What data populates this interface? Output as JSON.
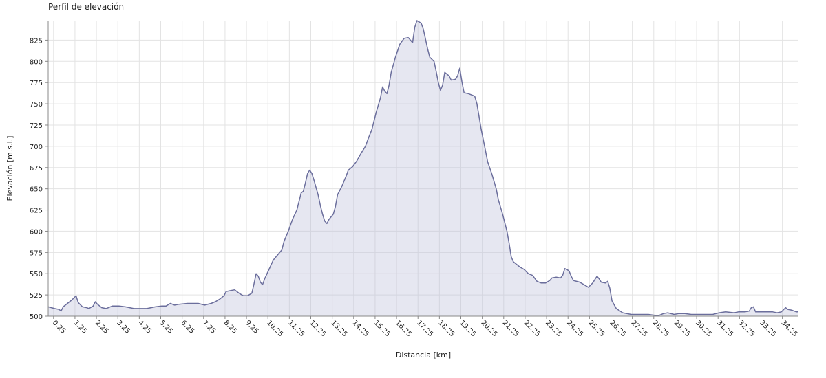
{
  "chart_data": {
    "type": "area",
    "title": "Perfil de elevación",
    "xlabel": "Distancia [km]",
    "ylabel": "Elevación [m.s.l.]",
    "xlim": [
      0,
      35
    ],
    "ylim": [
      500,
      848
    ],
    "x_tick_labels": [
      "0.25",
      "1.25",
      "2.25",
      "3.25",
      "4.25",
      "5.25",
      "6.25",
      "7.25",
      "8.25",
      "9.25",
      "10.25",
      "11.25",
      "12.25",
      "13.25",
      "14.25",
      "15.25",
      "16.25",
      "17.25",
      "18.25",
      "19.25",
      "20.25",
      "21.25",
      "22.25",
      "23.25",
      "24.25",
      "25.25",
      "26.25",
      "27.25",
      "28.25",
      "29.25",
      "30.25",
      "31.25",
      "32.25",
      "33.25",
      "34.25"
    ],
    "y_tick_labels": [
      "500",
      "525",
      "550",
      "575",
      "600",
      "625",
      "650",
      "675",
      "700",
      "725",
      "750",
      "775",
      "800",
      "825"
    ],
    "grid": true,
    "line_color": "#6b6e9c",
    "fill_color": "#b8bbd6",
    "grid_color": "#e3e3e3",
    "series": [
      {
        "points": [
          [
            0.0,
            511
          ],
          [
            0.3,
            509
          ],
          [
            0.5,
            508
          ],
          [
            0.6,
            506
          ],
          [
            0.7,
            511
          ],
          [
            0.9,
            515
          ],
          [
            1.1,
            519
          ],
          [
            1.3,
            524
          ],
          [
            1.4,
            516
          ],
          [
            1.6,
            511
          ],
          [
            1.8,
            510
          ],
          [
            1.9,
            509
          ],
          [
            2.1,
            512
          ],
          [
            2.2,
            517
          ],
          [
            2.3,
            514
          ],
          [
            2.5,
            510
          ],
          [
            2.7,
            509
          ],
          [
            3.0,
            512
          ],
          [
            3.3,
            512
          ],
          [
            3.6,
            511
          ],
          [
            4.0,
            509
          ],
          [
            4.3,
            509
          ],
          [
            4.6,
            509
          ],
          [
            5.0,
            511
          ],
          [
            5.3,
            512
          ],
          [
            5.5,
            512
          ],
          [
            5.7,
            515
          ],
          [
            5.9,
            513
          ],
          [
            6.1,
            514
          ],
          [
            6.5,
            515
          ],
          [
            6.8,
            515
          ],
          [
            7.0,
            515
          ],
          [
            7.3,
            513
          ],
          [
            7.6,
            515
          ],
          [
            7.8,
            517
          ],
          [
            8.0,
            520
          ],
          [
            8.2,
            524
          ],
          [
            8.3,
            529
          ],
          [
            8.5,
            530
          ],
          [
            8.7,
            531
          ],
          [
            8.9,
            527
          ],
          [
            9.1,
            524
          ],
          [
            9.3,
            524
          ],
          [
            9.5,
            527
          ],
          [
            9.6,
            538
          ],
          [
            9.7,
            550
          ],
          [
            9.8,
            547
          ],
          [
            9.9,
            540
          ],
          [
            10.0,
            537
          ],
          [
            10.1,
            544
          ],
          [
            10.3,
            555
          ],
          [
            10.5,
            566
          ],
          [
            10.7,
            572
          ],
          [
            10.9,
            578
          ],
          [
            11.0,
            588
          ],
          [
            11.2,
            600
          ],
          [
            11.4,
            614
          ],
          [
            11.6,
            625
          ],
          [
            11.8,
            645
          ],
          [
            11.9,
            647
          ],
          [
            12.0,
            657
          ],
          [
            12.1,
            668
          ],
          [
            12.2,
            672
          ],
          [
            12.3,
            668
          ],
          [
            12.4,
            660
          ],
          [
            12.6,
            642
          ],
          [
            12.7,
            630
          ],
          [
            12.8,
            620
          ],
          [
            12.9,
            612
          ],
          [
            13.0,
            609
          ],
          [
            13.1,
            614
          ],
          [
            13.2,
            617
          ],
          [
            13.3,
            620
          ],
          [
            13.4,
            629
          ],
          [
            13.5,
            643
          ],
          [
            13.7,
            653
          ],
          [
            13.9,
            665
          ],
          [
            14.0,
            672
          ],
          [
            14.2,
            676
          ],
          [
            14.4,
            683
          ],
          [
            14.6,
            692
          ],
          [
            14.8,
            700
          ],
          [
            14.9,
            707
          ],
          [
            15.1,
            720
          ],
          [
            15.3,
            740
          ],
          [
            15.5,
            757
          ],
          [
            15.6,
            770
          ],
          [
            15.7,
            765
          ],
          [
            15.8,
            762
          ],
          [
            15.9,
            772
          ],
          [
            16.0,
            787
          ],
          [
            16.2,
            805
          ],
          [
            16.4,
            820
          ],
          [
            16.6,
            827
          ],
          [
            16.8,
            828
          ],
          [
            16.9,
            825
          ],
          [
            17.0,
            822
          ],
          [
            17.1,
            840
          ],
          [
            17.2,
            848
          ],
          [
            17.4,
            845
          ],
          [
            17.5,
            838
          ],
          [
            17.7,
            815
          ],
          [
            17.8,
            805
          ],
          [
            18.0,
            800
          ],
          [
            18.1,
            788
          ],
          [
            18.2,
            775
          ],
          [
            18.3,
            766
          ],
          [
            18.4,
            772
          ],
          [
            18.5,
            787
          ],
          [
            18.7,
            783
          ],
          [
            18.8,
            778
          ],
          [
            19.0,
            779
          ],
          [
            19.1,
            783
          ],
          [
            19.2,
            792
          ],
          [
            19.3,
            776
          ],
          [
            19.4,
            763
          ],
          [
            19.6,
            762
          ],
          [
            19.8,
            760
          ],
          [
            19.9,
            759
          ],
          [
            20.0,
            750
          ],
          [
            20.2,
            720
          ],
          [
            20.4,
            695
          ],
          [
            20.5,
            682
          ],
          [
            20.7,
            667
          ],
          [
            20.9,
            650
          ],
          [
            21.0,
            637
          ],
          [
            21.2,
            620
          ],
          [
            21.4,
            600
          ],
          [
            21.5,
            586
          ],
          [
            21.6,
            570
          ],
          [
            21.7,
            564
          ],
          [
            22.0,
            558
          ],
          [
            22.2,
            555
          ],
          [
            22.4,
            550
          ],
          [
            22.6,
            548
          ],
          [
            22.8,
            541
          ],
          [
            23.0,
            539
          ],
          [
            23.2,
            539
          ],
          [
            23.4,
            542
          ],
          [
            23.5,
            545
          ],
          [
            23.7,
            546
          ],
          [
            23.9,
            545
          ],
          [
            24.0,
            548
          ],
          [
            24.1,
            556
          ],
          [
            24.2,
            555
          ],
          [
            24.3,
            553
          ],
          [
            24.4,
            547
          ],
          [
            24.5,
            542
          ],
          [
            24.8,
            540
          ],
          [
            25.0,
            537
          ],
          [
            25.2,
            534
          ],
          [
            25.4,
            539
          ],
          [
            25.6,
            547
          ],
          [
            25.7,
            544
          ],
          [
            25.8,
            540
          ],
          [
            26.0,
            539
          ],
          [
            26.1,
            541
          ],
          [
            26.2,
            533
          ],
          [
            26.3,
            518
          ],
          [
            26.5,
            509
          ],
          [
            26.8,
            504
          ],
          [
            27.2,
            502
          ],
          [
            27.6,
            502
          ],
          [
            28.0,
            502
          ],
          [
            28.3,
            501
          ],
          [
            28.5,
            501
          ],
          [
            28.7,
            503
          ],
          [
            28.9,
            504
          ],
          [
            29.2,
            502
          ],
          [
            29.4,
            503
          ],
          [
            29.7,
            503
          ],
          [
            30.0,
            502
          ],
          [
            30.3,
            502
          ],
          [
            30.6,
            502
          ],
          [
            31.0,
            502
          ],
          [
            31.3,
            504
          ],
          [
            31.6,
            505
          ],
          [
            32.0,
            504
          ],
          [
            32.2,
            505
          ],
          [
            32.5,
            505
          ],
          [
            32.7,
            506
          ],
          [
            32.8,
            510
          ],
          [
            32.9,
            511
          ],
          [
            33.0,
            505
          ],
          [
            33.2,
            505
          ],
          [
            33.5,
            505
          ],
          [
            33.8,
            505
          ],
          [
            34.0,
            504
          ],
          [
            34.2,
            505
          ],
          [
            34.4,
            510
          ],
          [
            34.5,
            508
          ],
          [
            34.7,
            507
          ],
          [
            34.9,
            505
          ],
          [
            35.0,
            505
          ]
        ]
      }
    ]
  }
}
